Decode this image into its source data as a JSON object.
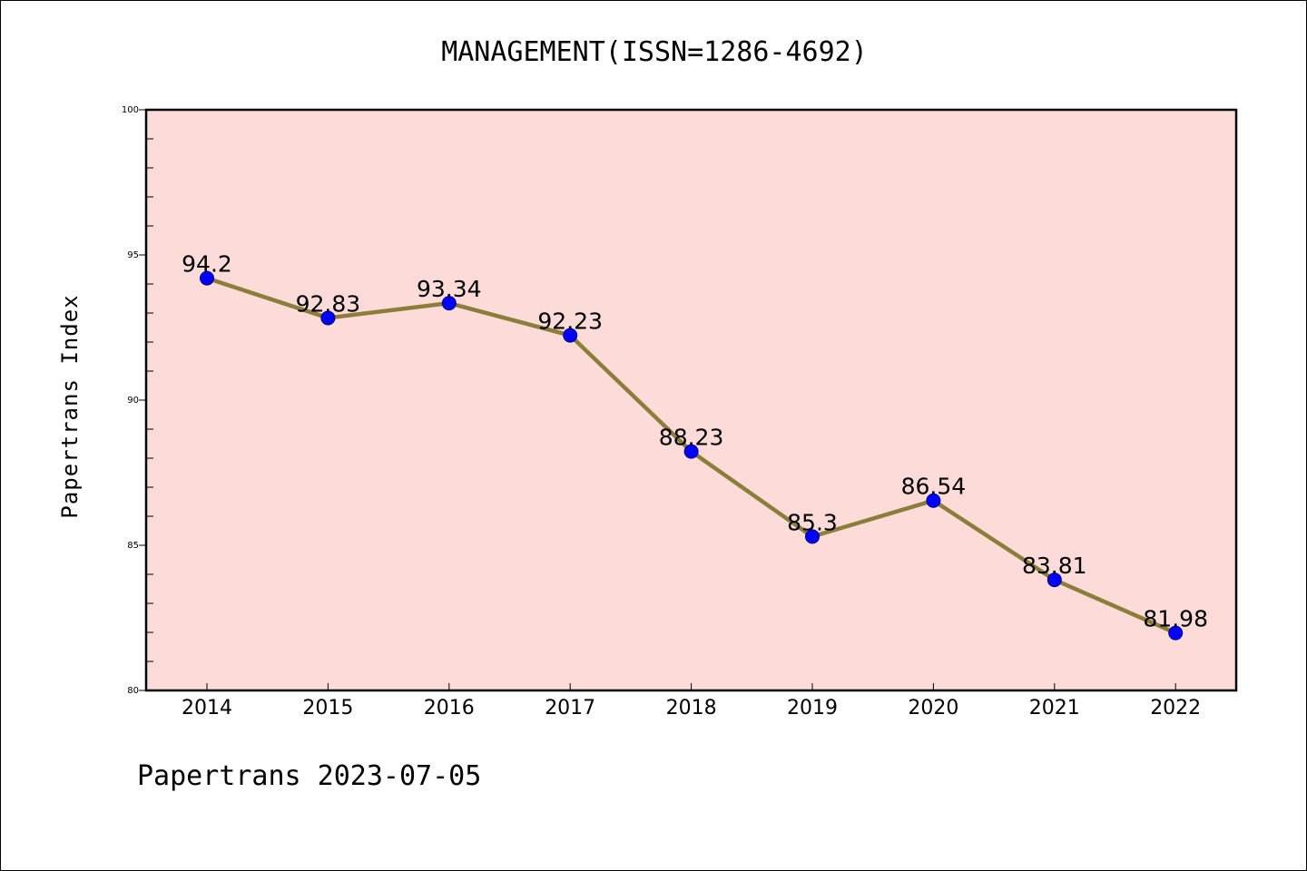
{
  "chart_data": {
    "type": "line",
    "title": "MANAGEMENT(ISSN=1286-4692)",
    "ylabel": "Papertrans Index",
    "xlabel": "",
    "x": [
      "2014",
      "2015",
      "2016",
      "2017",
      "2018",
      "2019",
      "2020",
      "2021",
      "2022"
    ],
    "series": [
      {
        "values": [
          94.2,
          92.83,
          93.34,
          92.23,
          88.23,
          85.3,
          86.54,
          83.81,
          81.98
        ],
        "data_labels": [
          "94.2",
          "92.83",
          "93.34",
          "92.23",
          "88.23",
          "85.3",
          "86.54",
          "83.81",
          "81.98"
        ]
      }
    ],
    "ylim": [
      80,
      100
    ],
    "yticks": [
      80,
      85,
      90,
      95,
      100
    ],
    "ytick_labels": [
      "80",
      "85",
      "90",
      "95",
      "100"
    ],
    "grid": false,
    "footer": "Papertrans 2023-07-05",
    "colors": {
      "plot_background": "#fddbd8",
      "line": "#8b7d3a",
      "marker": "#0000ff",
      "marker_edge": "#000080",
      "axes": "#000000"
    }
  }
}
